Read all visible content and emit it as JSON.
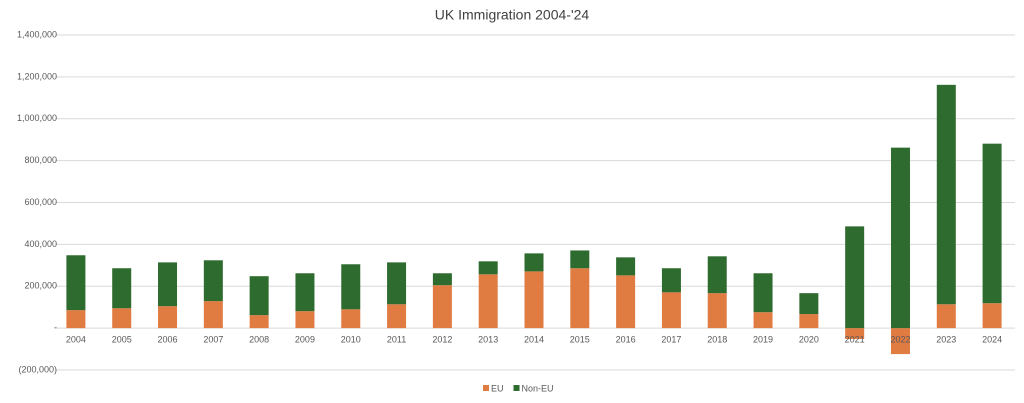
{
  "chart_data": {
    "type": "stacked-bar",
    "title": "UK Immigration 2004-'24",
    "categories": [
      "2004",
      "2005",
      "2006",
      "2007",
      "2008",
      "2009",
      "2010",
      "2011",
      "2012",
      "2013",
      "2014",
      "2015",
      "2016",
      "2017",
      "2018",
      "2019",
      "2020",
      "2021",
      "2022",
      "2023",
      "2024"
    ],
    "series": [
      {
        "name": "EU",
        "color": "#e07b42",
        "values": [
          86000,
          95000,
          105000,
          129000,
          62000,
          81000,
          90000,
          114000,
          205000,
          257000,
          271000,
          286000,
          252000,
          171000,
          167000,
          76000,
          67000,
          -52000,
          -124000,
          114000,
          119000
        ]
      },
      {
        "name": "Non-EU",
        "color": "#2e6b2e",
        "values": [
          262000,
          191000,
          209000,
          195000,
          186000,
          181000,
          215000,
          200000,
          57000,
          62000,
          86000,
          85000,
          86000,
          115000,
          176000,
          186000,
          100000,
          486000,
          862000,
          1048000,
          762000
        ]
      }
    ],
    "ylim": [
      -200000,
      1400000
    ],
    "yticks": [
      {
        "value": -200000,
        "label": "(200,000)"
      },
      {
        "value": 0,
        "label": "-"
      },
      {
        "value": 200000,
        "label": "200,000"
      },
      {
        "value": 400000,
        "label": "400,000"
      },
      {
        "value": 600000,
        "label": "600,000"
      },
      {
        "value": 800000,
        "label": "800,000"
      },
      {
        "value": 1000000,
        "label": "1,000,000"
      },
      {
        "value": 1200000,
        "label": "1,200,000"
      },
      {
        "value": 1400000,
        "label": "1,400,000"
      }
    ],
    "grid": true,
    "legend": "bottom"
  }
}
